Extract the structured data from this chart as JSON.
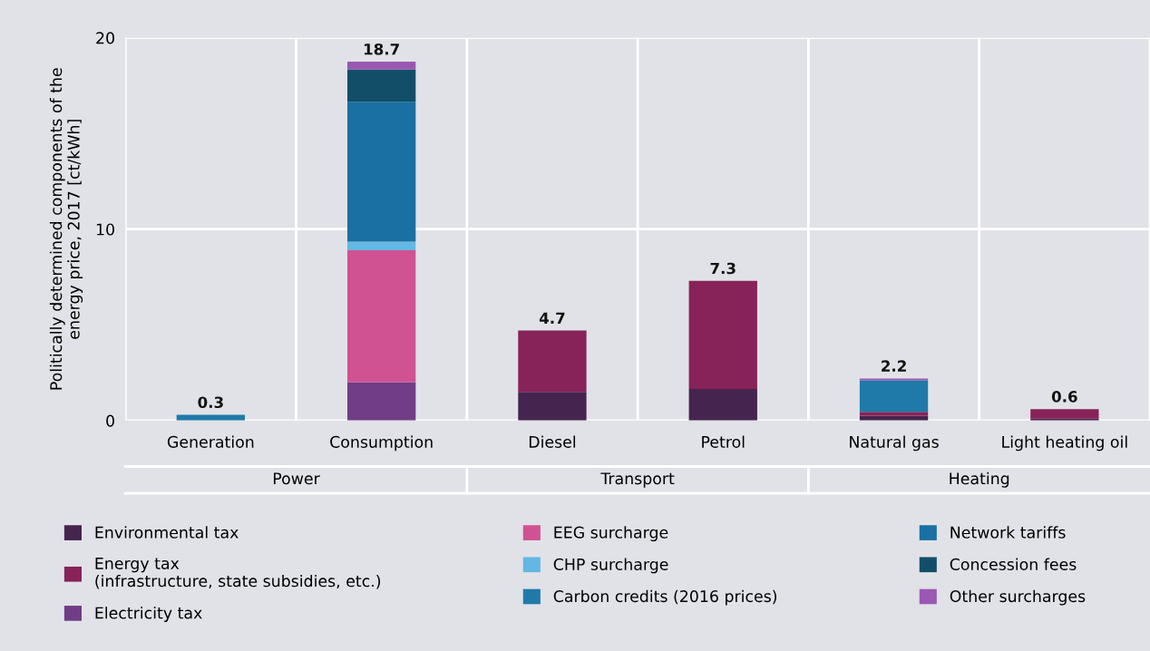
{
  "chart_data": {
    "type": "bar",
    "stacked": true,
    "ylabel": "Politically determined components of the\nenergy price, 2017 [ct/kWh]",
    "categories": [
      "Generation",
      "Consumption",
      "Diesel",
      "Petrol",
      "Natural gas",
      "Light heating oil"
    ],
    "series": [
      {
        "name": "Environmental tax",
        "color": "#45244f",
        "values": [
          null,
          null,
          1.5,
          1.65,
          0.25,
          0.1
        ]
      },
      {
        "name": "Energy tax\n(infrastructure, state subsidies, etc.)",
        "color": "#872358",
        "values": [
          null,
          null,
          3.2,
          5.65,
          0.2,
          0.5
        ]
      },
      {
        "name": "Electricity tax",
        "color": "#703d86",
        "values": [
          null,
          2.0,
          null,
          null,
          null,
          null
        ]
      },
      {
        "name": "EEG surcharge",
        "color": "#d05293",
        "values": [
          null,
          6.9,
          null,
          null,
          null,
          null
        ]
      },
      {
        "name": "CHP surcharge",
        "color": "#62b8e3",
        "values": [
          null,
          0.45,
          null,
          null,
          null,
          null
        ]
      },
      {
        "name": "Carbon credits (2016 prices)",
        "color": "#1f7aaa",
        "values": [
          0.3,
          null,
          null,
          null,
          1.65,
          null
        ]
      },
      {
        "name": "Network tariffs",
        "color": "#1a70a2",
        "values": [
          null,
          7.3,
          null,
          null,
          null,
          null
        ]
      },
      {
        "name": "Concession fees",
        "color": "#134e69",
        "values": [
          null,
          1.7,
          null,
          null,
          null,
          null
        ]
      },
      {
        "name": "Other surcharges",
        "color": "#9a58b2",
        "values": [
          null,
          0.4,
          null,
          null,
          0.1,
          null
        ]
      }
    ],
    "totals": [
      "0.3",
      "18.7",
      "4.7",
      "7.3",
      "2.2",
      "0.6"
    ],
    "annotations": [
      "Power",
      "Transport",
      "Heating"
    ],
    "ylim": [
      0,
      20
    ],
    "yticks": [
      0,
      10,
      20
    ],
    "grid": true,
    "legend": "bottom"
  }
}
